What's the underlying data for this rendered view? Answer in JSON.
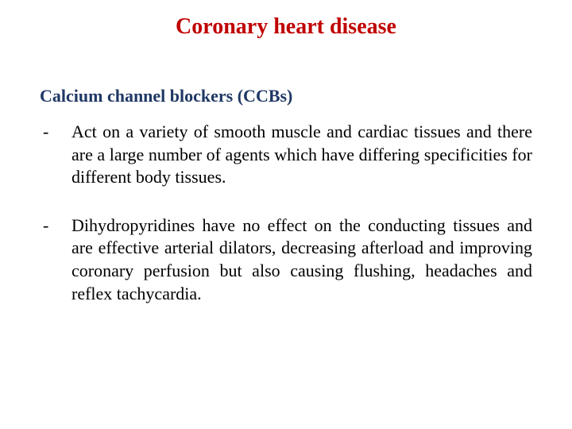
{
  "title": {
    "text": "Coronary heart disease",
    "color": "#c00000"
  },
  "subheading": {
    "text": "Calcium channel blockers (CCBs)",
    "color": "#1f3864"
  },
  "bullets": [
    {
      "text": "Act on a variety of smooth muscle and cardiac tissues and there are a large number of agents which have differing specificities for different body tissues."
    },
    {
      "text": "Dihydropyridines have no effect on the conducting tissues and are effective arterial dilators, decreasing afterload and improving coronary perfusion but also causing flushing, headaches and reflex tachycardia."
    }
  ],
  "styles": {
    "background_color": "#ffffff",
    "body_text_color": "#000000",
    "font_family": "Times New Roman",
    "title_fontsize": 28,
    "subheading_fontsize": 22,
    "body_fontsize": 22
  }
}
